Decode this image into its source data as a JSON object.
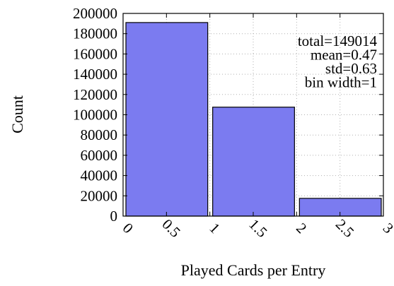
{
  "chart_data": {
    "type": "bar",
    "xlabel": "Played Cards per Entry",
    "ylabel": "Count",
    "bins": [
      {
        "x0": 0,
        "x1": 1,
        "value": 191000
      },
      {
        "x0": 1,
        "x1": 2,
        "value": 107500
      },
      {
        "x0": 2,
        "x1": 3,
        "value": 17500
      }
    ],
    "xlim": [
      0,
      3
    ],
    "ylim": [
      0,
      200000
    ],
    "xticks": [
      "0",
      "0.5",
      "1",
      "1.5",
      "2",
      "2.5",
      "3"
    ],
    "yticks": [
      "0",
      "20000",
      "40000",
      "60000",
      "80000",
      "100000",
      "120000",
      "140000",
      "160000",
      "180000",
      "200000"
    ],
    "grid": true,
    "stats": [
      "total=149014",
      "mean=0.47",
      "std=0.63",
      "bin width=1"
    ],
    "colors": {
      "bar_fill": "#7b7bf0",
      "bar_edge": "#000000",
      "grid": "#b0b0b0"
    }
  }
}
